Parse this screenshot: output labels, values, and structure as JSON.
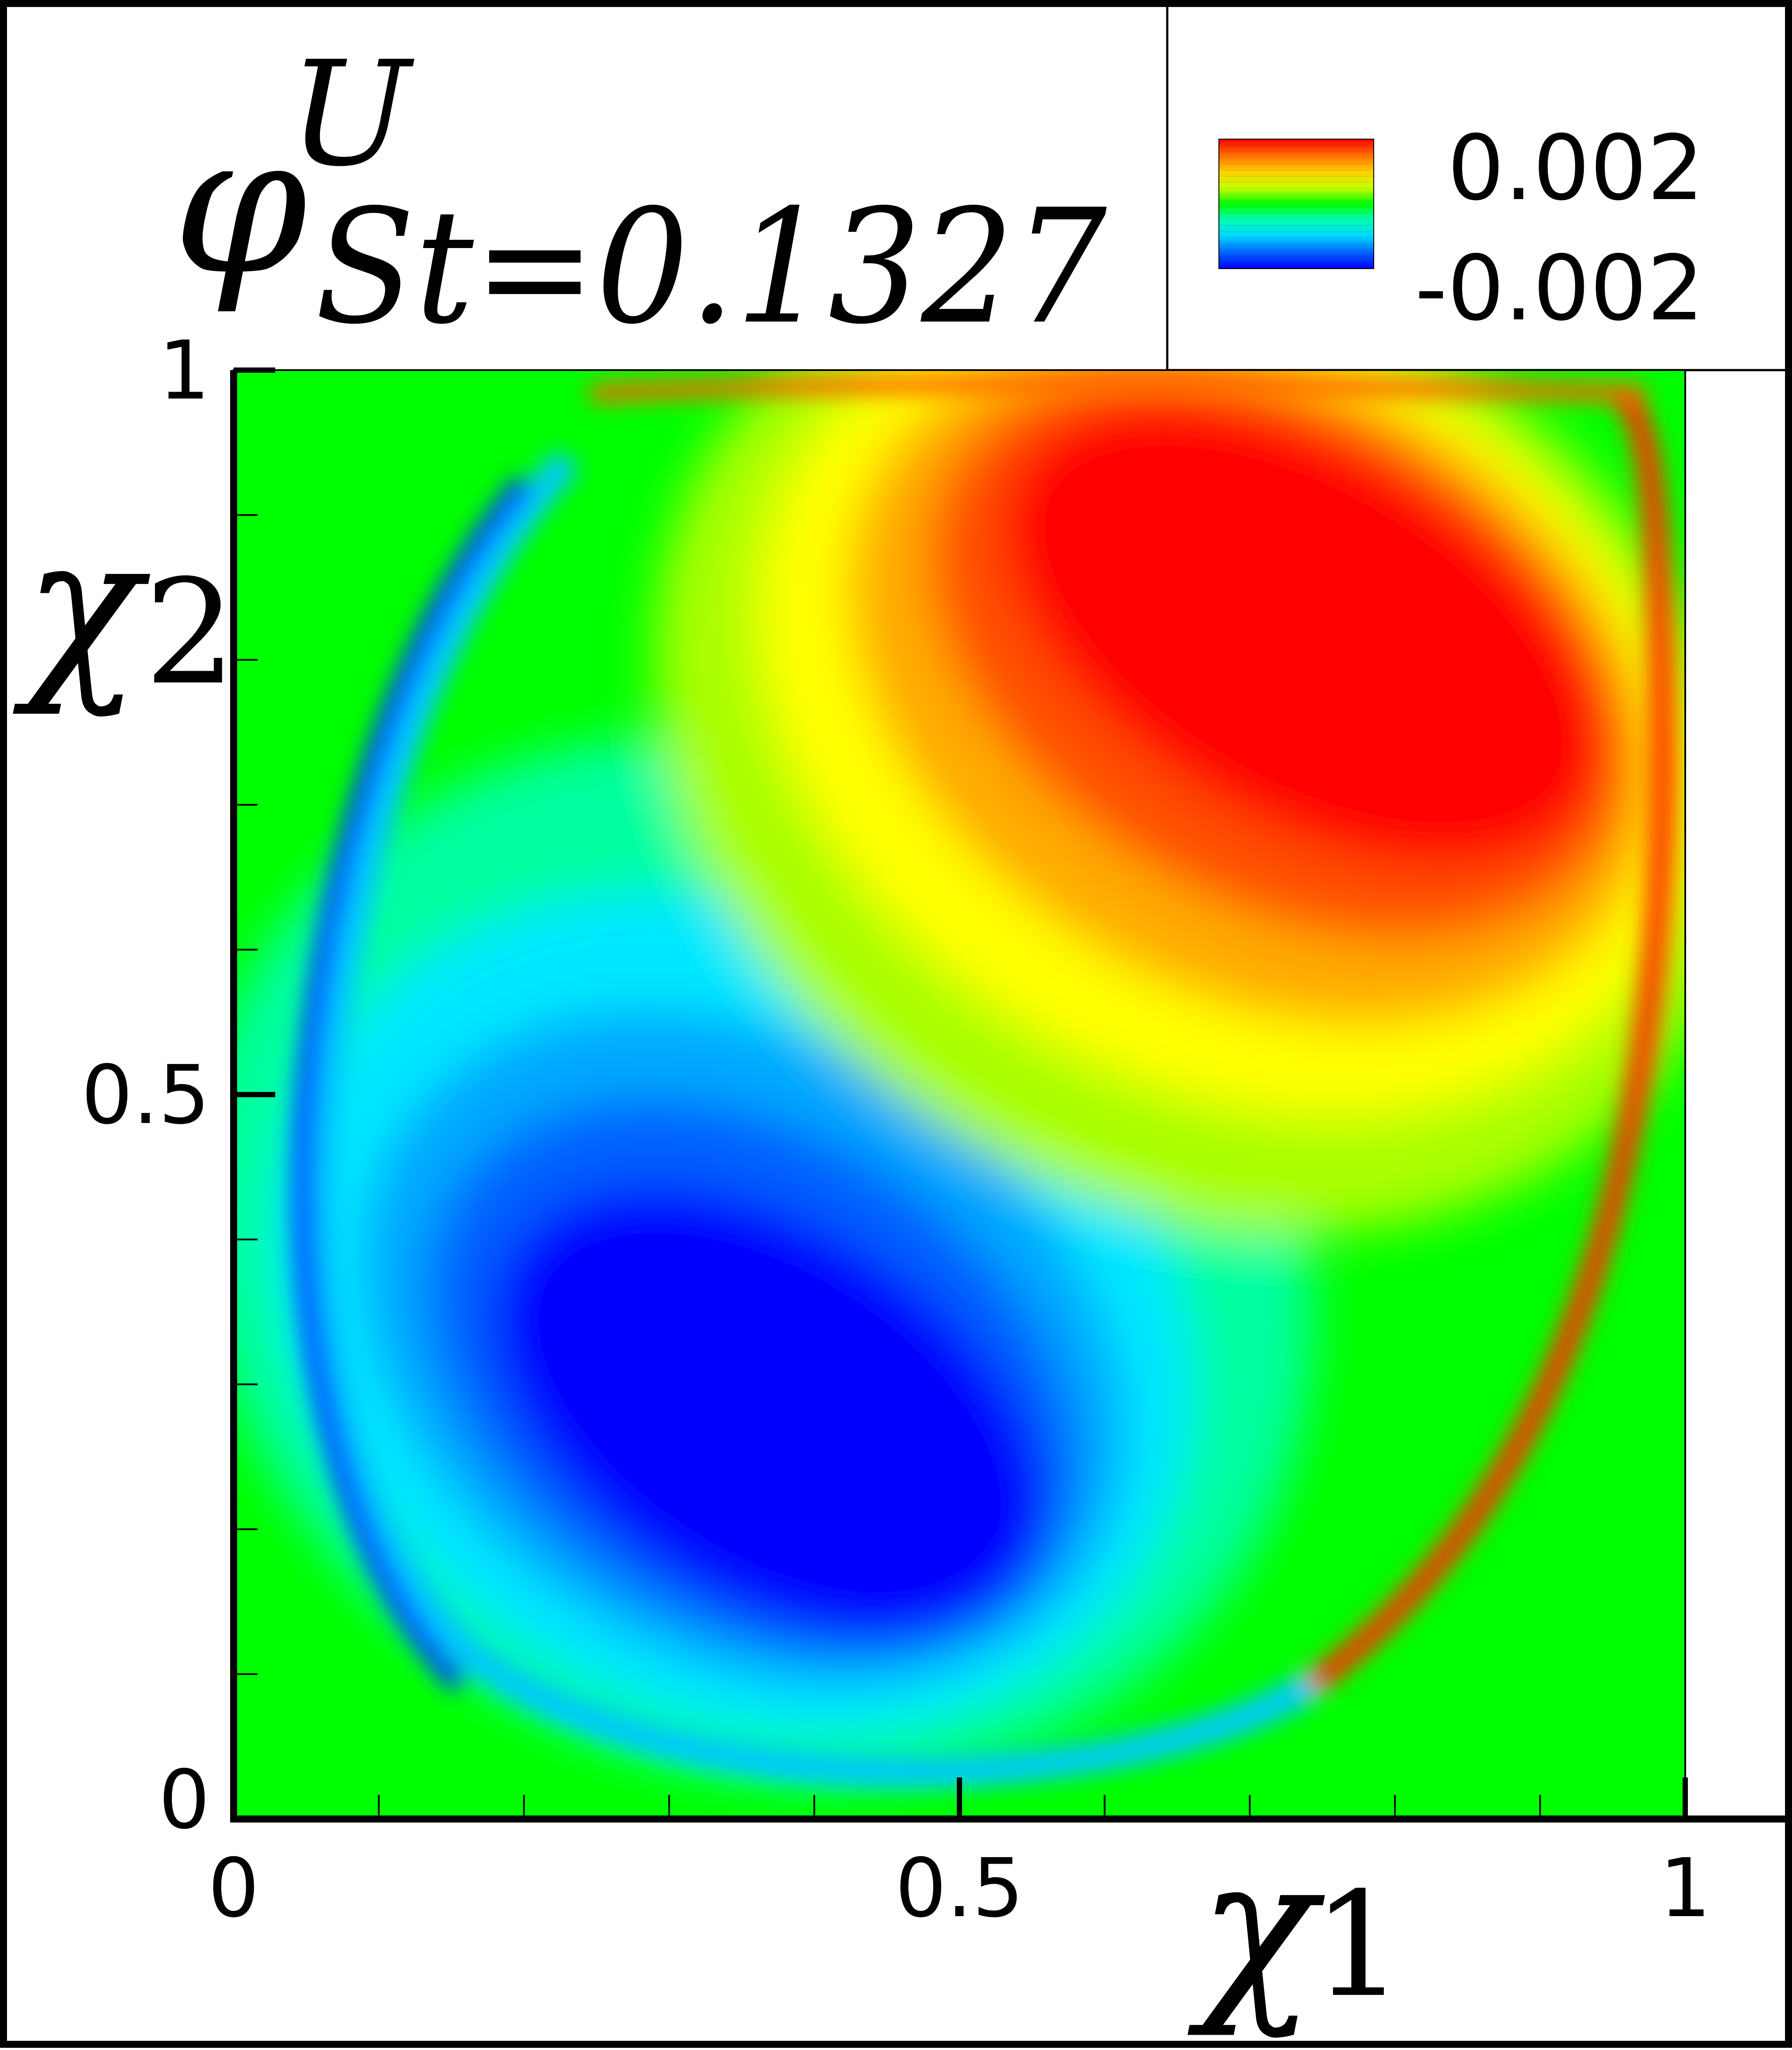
{
  "chart_data": {
    "type": "heatmap",
    "title": {
      "symbol": "φ",
      "superscript": "U",
      "subscript": "St=0.1327"
    },
    "xlabel": {
      "base": "χ",
      "index": "1"
    },
    "ylabel": {
      "base": "χ",
      "index": "2"
    },
    "xlim": [
      0,
      1
    ],
    "ylim": [
      0,
      1
    ],
    "x_ticks": [
      "0",
      "0.5",
      "1"
    ],
    "y_ticks": [
      "0",
      "0.5",
      "1"
    ],
    "x_tick_values": [
      0,
      0.5,
      1
    ],
    "y_tick_values": [
      0,
      0.5,
      1
    ],
    "minor_tick_step": 0.1,
    "colorbar": {
      "max_label": "0.002",
      "min_label": "-0.002",
      "vmin": -0.002,
      "vmax": 0.002,
      "placement": "top-right",
      "levels": 21
    },
    "colormap": [
      "#0000ff",
      "#0064ff",
      "#00c8ff",
      "#00ffaa",
      "#00ff00",
      "#aaff00",
      "#ffff00",
      "#ffaa00",
      "#ff5000",
      "#ff0000"
    ],
    "field_features": [
      {
        "feature": "positive lobe",
        "center": [
          0.72,
          0.78
        ],
        "peak": 0.002
      },
      {
        "feature": "negative lobe",
        "center": [
          0.34,
          0.22
        ],
        "peak": -0.002
      }
    ],
    "background_value": 0.0
  }
}
